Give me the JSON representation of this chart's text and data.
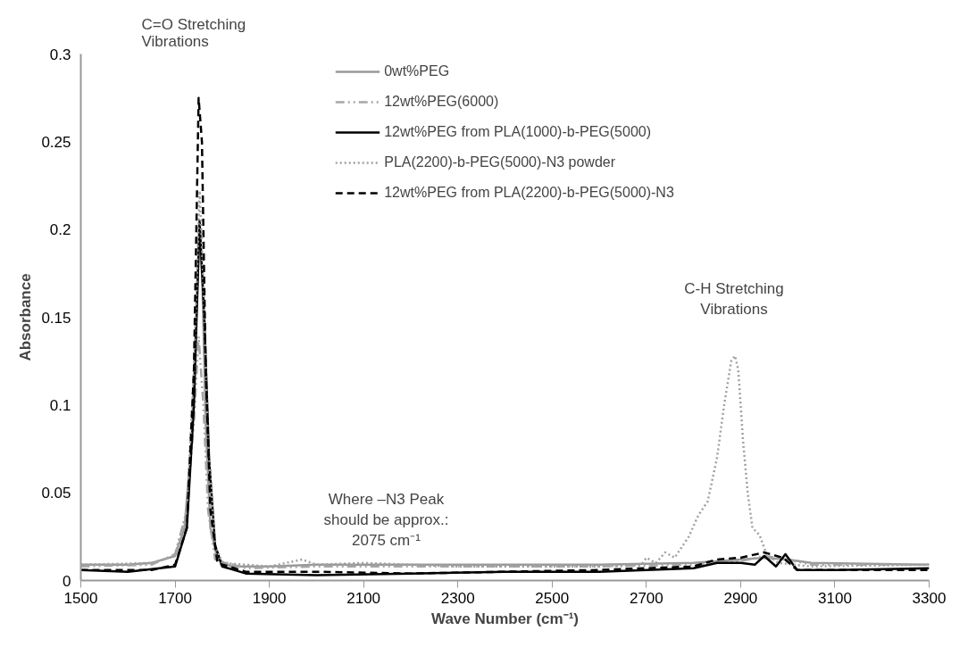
{
  "chart_data": {
    "type": "line",
    "xlabel": "Wave Number (cm⁻¹)",
    "ylabel": "Absorbance",
    "xlim": [
      1500,
      3300
    ],
    "xticks": [
      1500,
      1700,
      1900,
      2100,
      2300,
      2500,
      2700,
      2900,
      3100,
      3300
    ],
    "ylim": [
      0,
      0.3
    ],
    "yticks": [
      0,
      0.05,
      0.1,
      0.15,
      0.2,
      0.25,
      0.3
    ],
    "grid": false,
    "legend": "top",
    "marker": "none",
    "annotations": [
      "C=O Stretching\nVibrations",
      "Where –N3 Peak\nshould be approx.:\n2075 cm⁻¹",
      "C-H Stretching\nVibrations"
    ],
    "series": [
      {
        "name": "0wt%PEG",
        "color": "#999999",
        "line_style": "solid",
        "x": [
          1500,
          1600,
          1650,
          1700,
          1720,
          1735,
          1745,
          1752,
          1758,
          1765,
          1775,
          1790,
          1820,
          1900,
          2000,
          2200,
          2400,
          2600,
          2800,
          2900,
          2950,
          3000,
          3050,
          3300
        ],
        "values": [
          0.009,
          0.009,
          0.01,
          0.014,
          0.03,
          0.08,
          0.15,
          0.2,
          0.17,
          0.09,
          0.03,
          0.012,
          0.008,
          0.008,
          0.009,
          0.009,
          0.009,
          0.009,
          0.01,
          0.012,
          0.013,
          0.012,
          0.01,
          0.009
        ]
      },
      {
        "name": "12wt%PEG(6000)",
        "color": "#a6a6a6",
        "line_style": "dashdot",
        "x": [
          1500,
          1650,
          1700,
          1725,
          1740,
          1750,
          1760,
          1770,
          1785,
          1850,
          2000,
          2300,
          2600,
          2800,
          2900,
          2950,
          3000,
          3050,
          3300
        ],
        "values": [
          0.008,
          0.009,
          0.015,
          0.04,
          0.09,
          0.139,
          0.1,
          0.04,
          0.012,
          0.007,
          0.008,
          0.008,
          0.008,
          0.009,
          0.011,
          0.014,
          0.012,
          0.009,
          0.009
        ]
      },
      {
        "name": "12wt%PEG from PLA(1000)-b-PEG(5000)",
        "color": "#000000",
        "line_style": "solid",
        "x": [
          1500,
          1600,
          1700,
          1725,
          1740,
          1752,
          1762,
          1772,
          1785,
          1800,
          1850,
          2000,
          2200,
          2400,
          2600,
          2800,
          2850,
          2900,
          2930,
          2950,
          2975,
          2995,
          3020,
          3100,
          3300
        ],
        "values": [
          0.006,
          0.005,
          0.008,
          0.03,
          0.1,
          0.205,
          0.15,
          0.07,
          0.02,
          0.008,
          0.004,
          0.003,
          0.004,
          0.005,
          0.005,
          0.007,
          0.01,
          0.01,
          0.009,
          0.014,
          0.008,
          0.015,
          0.006,
          0.006,
          0.007
        ]
      },
      {
        "name": "PLA(2200)-b-PEG(5000)-N3 powder",
        "color": "#a0a0a0",
        "line_style": "dotted",
        "x": [
          1500,
          1650,
          1700,
          1725,
          1740,
          1752,
          1760,
          1770,
          1785,
          1800,
          1900,
          1970,
          2000,
          2100,
          2300,
          2600,
          2690,
          2700,
          2720,
          2740,
          2760,
          2790,
          2810,
          2830,
          2850,
          2865,
          2880,
          2888,
          2895,
          2905,
          2915,
          2925,
          2940,
          2955,
          2980,
          3050,
          3300
        ],
        "values": [
          0.009,
          0.01,
          0.014,
          0.04,
          0.12,
          0.222,
          0.17,
          0.08,
          0.02,
          0.01,
          0.008,
          0.012,
          0.009,
          0.01,
          0.008,
          0.008,
          0.009,
          0.013,
          0.01,
          0.016,
          0.013,
          0.025,
          0.037,
          0.045,
          0.07,
          0.1,
          0.125,
          0.128,
          0.12,
          0.08,
          0.05,
          0.03,
          0.026,
          0.015,
          0.01,
          0.008,
          0.009
        ]
      },
      {
        "name": "12wt%PEG from PLA(2200)-b-PEG(5000)-N3",
        "color": "#000000",
        "line_style": "dashed",
        "x": [
          1500,
          1650,
          1700,
          1725,
          1740,
          1750,
          1757,
          1765,
          1775,
          1790,
          1850,
          2000,
          2200,
          2400,
          2600,
          2800,
          2850,
          2900,
          2950,
          2990,
          3020,
          3300
        ],
        "values": [
          0.006,
          0.006,
          0.009,
          0.03,
          0.12,
          0.275,
          0.25,
          0.12,
          0.04,
          0.01,
          0.005,
          0.005,
          0.004,
          0.005,
          0.006,
          0.008,
          0.012,
          0.013,
          0.016,
          0.013,
          0.006,
          0.006
        ]
      }
    ]
  }
}
